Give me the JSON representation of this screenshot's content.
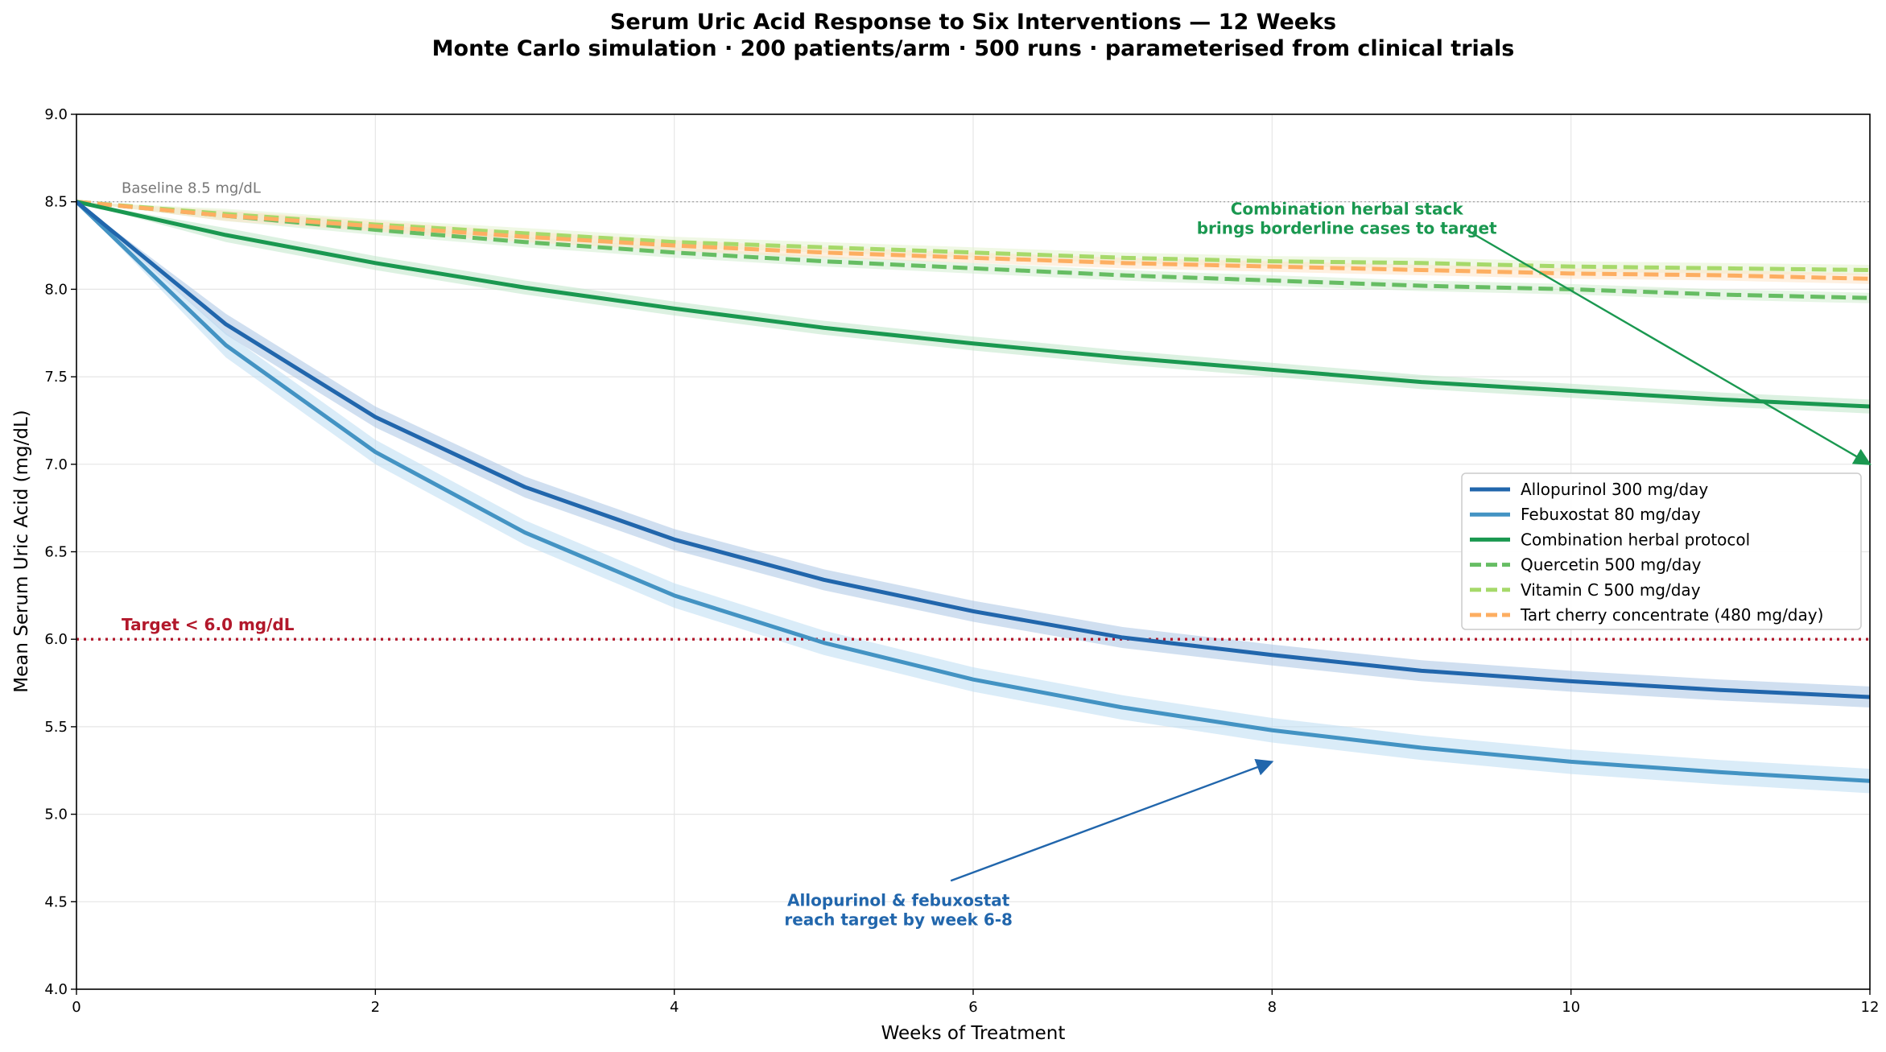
{
  "chart_data": {
    "type": "line",
    "title": "Serum Uric Acid Response to Six Interventions — 12 Weeks",
    "subtitle": "Monte Carlo simulation · 200 patients/arm · 500 runs · parameterised from clinical trials",
    "xlabel": "Weeks of Treatment",
    "ylabel": "Mean Serum Uric Acid (mg/dL)",
    "xlim": [
      0,
      12
    ],
    "ylim": [
      4.0,
      9.0
    ],
    "x_ticks": [
      0,
      2,
      4,
      6,
      8,
      10,
      12
    ],
    "y_ticks": [
      4.0,
      4.5,
      5.0,
      5.5,
      6.0,
      6.5,
      7.0,
      7.5,
      8.0,
      8.5,
      9.0
    ],
    "grid": true,
    "legend_position": "right",
    "x": [
      0,
      1,
      2,
      3,
      4,
      5,
      6,
      7,
      8,
      9,
      10,
      11,
      12
    ],
    "series": [
      {
        "name": "Allopurinol 300 mg/day",
        "color": "#2166ac",
        "style": "solid",
        "band_color": "#a9c4e4",
        "values": [
          8.5,
          7.8,
          7.27,
          6.87,
          6.57,
          6.34,
          6.16,
          6.01,
          5.91,
          5.82,
          5.76,
          5.71,
          5.67
        ],
        "band": 0.06
      },
      {
        "name": "Febuxostat 80 mg/day",
        "color": "#4393c3",
        "style": "solid",
        "band_color": "#bcdcf2",
        "values": [
          8.5,
          7.68,
          7.07,
          6.61,
          6.25,
          5.98,
          5.77,
          5.61,
          5.48,
          5.38,
          5.3,
          5.24,
          5.19
        ],
        "band": 0.07
      },
      {
        "name": "Combination herbal protocol",
        "color": "#1a9850",
        "style": "solid",
        "band_color": "#bfe6c9",
        "values": [
          8.5,
          8.31,
          8.15,
          8.01,
          7.89,
          7.78,
          7.69,
          7.61,
          7.54,
          7.47,
          7.42,
          7.37,
          7.33
        ],
        "band": 0.04
      },
      {
        "name": "Quercetin 500 mg/day",
        "color": "#66bd63",
        "style": "dashed",
        "band_color": "#d2ecd0",
        "values": [
          8.5,
          8.42,
          8.34,
          8.27,
          8.21,
          8.16,
          8.12,
          8.08,
          8.05,
          8.02,
          8.0,
          7.97,
          7.95
        ],
        "band": 0.03
      },
      {
        "name": "Vitamin C 500 mg/day",
        "color": "#a6d96a",
        "style": "dashed",
        "band_color": "#e3f2cf",
        "values": [
          8.5,
          8.43,
          8.37,
          8.32,
          8.27,
          8.24,
          8.21,
          8.18,
          8.16,
          8.15,
          8.13,
          8.12,
          8.11
        ],
        "band": 0.03
      },
      {
        "name": "Tart cherry concentrate (480 mg/day)",
        "color": "#fdae61",
        "style": "dashed",
        "band_color": "#fde3c7",
        "values": [
          8.5,
          8.42,
          8.36,
          8.3,
          8.25,
          8.21,
          8.18,
          8.15,
          8.13,
          8.11,
          8.09,
          8.08,
          8.06
        ],
        "band": 0.03
      }
    ],
    "reference_lines": [
      {
        "y": 8.5,
        "label": "Baseline 8.5 mg/dL",
        "color": "#999999"
      },
      {
        "y": 6.0,
        "label": "Target < 6.0 mg/dL",
        "color": "#b2182b"
      }
    ],
    "annotations": [
      {
        "lines": [
          "Combination herbal stack",
          "brings borderline cases to target"
        ],
        "color": "#1a9850",
        "text_x": 8.5,
        "text_y": 8.45,
        "arrow_x": 12.0,
        "arrow_y": 7.0,
        "arrow_start_x": 9.3,
        "arrow_start_y": 8.34
      },
      {
        "lines": [
          "Allopurinol & febuxostat",
          "reach target by week 6-8"
        ],
        "color": "#2166ac",
        "text_x": 5.5,
        "text_y": 4.5,
        "arrow_x": 8.0,
        "arrow_y": 5.3,
        "arrow_start_x": 5.85,
        "arrow_start_y": 4.62
      }
    ]
  }
}
